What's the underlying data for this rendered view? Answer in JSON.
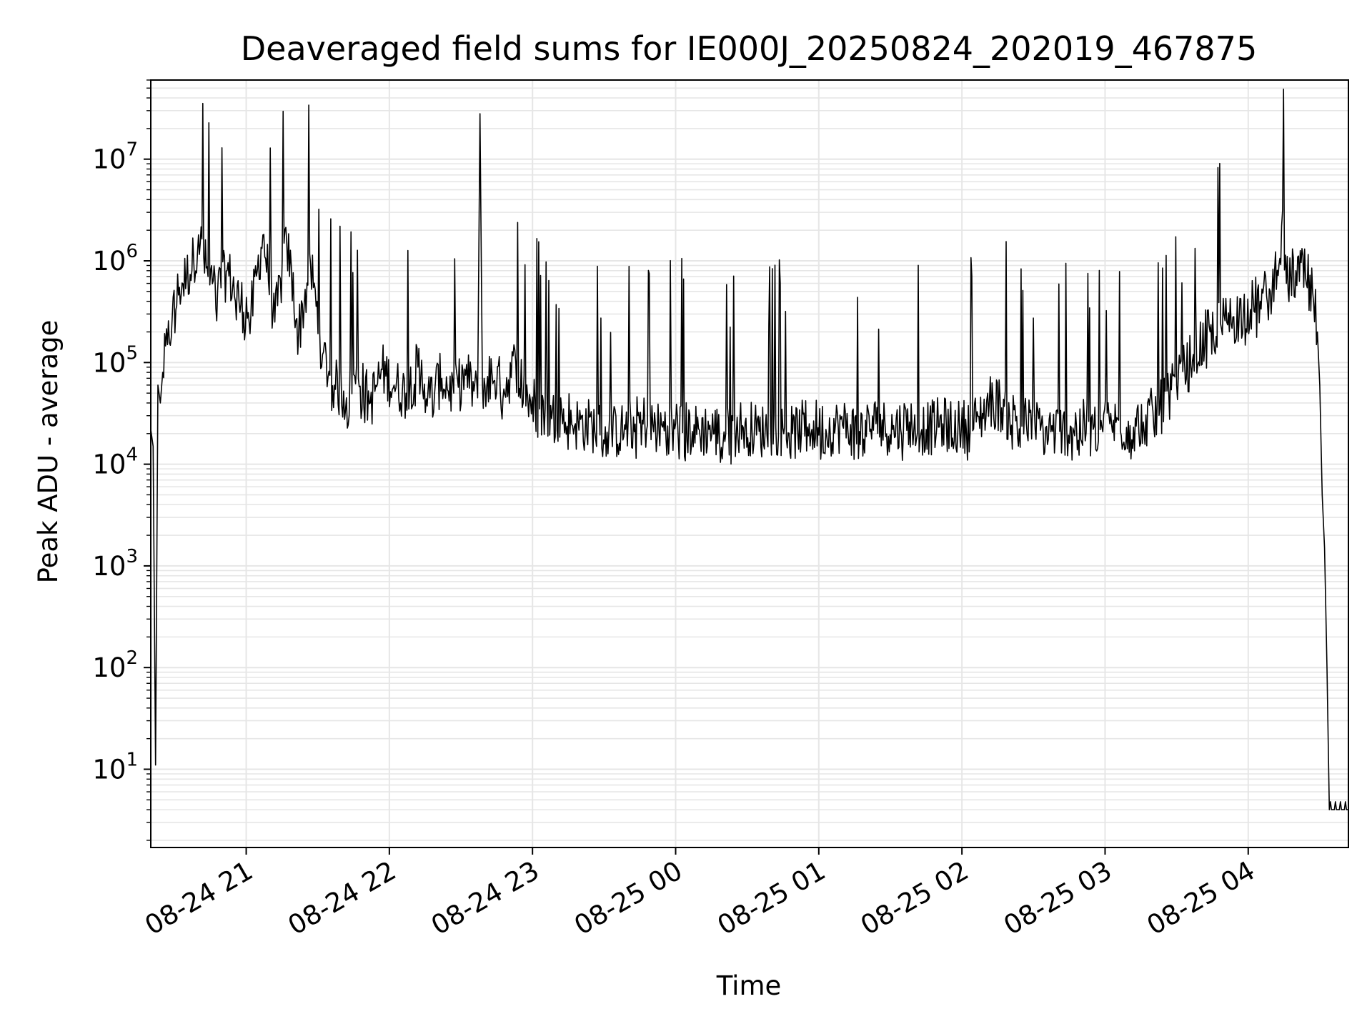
{
  "chart_data": {
    "type": "line",
    "title": "Deaveraged field sums for IE000J_20250824_202019_467875",
    "xlabel": "Time",
    "ylabel": "Peak ADU - average",
    "y_scale": "log",
    "x_range": [
      "2025-08-24T20:20",
      "2025-08-25T04:42"
    ],
    "ylim": [
      1.7,
      60000000
    ],
    "grid": true,
    "x_tick_rotation_deg": 30,
    "x_ticks": [
      {
        "time": "2025-08-24T21:00",
        "label": "08-24 21"
      },
      {
        "time": "2025-08-24T22:00",
        "label": "08-24 22"
      },
      {
        "time": "2025-08-24T23:00",
        "label": "08-24 23"
      },
      {
        "time": "2025-08-25T00:00",
        "label": "08-25 00"
      },
      {
        "time": "2025-08-25T01:00",
        "label": "08-25 01"
      },
      {
        "time": "2025-08-25T02:00",
        "label": "08-25 02"
      },
      {
        "time": "2025-08-25T03:00",
        "label": "08-25 03"
      },
      {
        "time": "2025-08-25T04:00",
        "label": "08-25 04"
      }
    ],
    "y_ticks": [
      {
        "value": 10,
        "base": "10",
        "exp": "1"
      },
      {
        "value": 100,
        "base": "10",
        "exp": "2"
      },
      {
        "value": 1000,
        "base": "10",
        "exp": "3"
      },
      {
        "value": 10000,
        "base": "10",
        "exp": "4"
      },
      {
        "value": 100000,
        "base": "10",
        "exp": "5"
      },
      {
        "value": 1000000,
        "base": "10",
        "exp": "6"
      },
      {
        "value": 10000000,
        "base": "10",
        "exp": "7"
      }
    ],
    "series": [
      {
        "color": "#000000",
        "points": [
          [
            "2025-08-24T20:20",
            1.8
          ],
          [
            "2025-08-24T20:20",
            22000
          ],
          [
            "2025-08-24T20:21",
            15000
          ],
          [
            "2025-08-24T20:22",
            11
          ],
          [
            "2025-08-24T20:23",
            60000
          ],
          [
            "2025-08-24T20:24",
            40000
          ],
          [
            "2025-08-24T20:25",
            80000
          ],
          [
            "2025-08-24T20:27",
            150000
          ],
          [
            "2025-08-24T20:29",
            280000
          ],
          [
            "2025-08-24T20:32",
            550000
          ],
          [
            "2025-08-24T20:35",
            700000
          ],
          [
            "2025-08-24T20:38",
            1000000
          ],
          [
            "2025-08-24T20:40",
            1800000
          ],
          [
            "2025-08-24T20:44",
            700000
          ],
          [
            "2025-08-24T20:48",
            500000
          ],
          [
            "2025-08-24T20:52",
            800000
          ],
          [
            "2025-08-24T20:57",
            400000
          ],
          [
            "2025-08-24T21:02",
            300000
          ],
          [
            "2025-08-24T21:07",
            1800000
          ],
          [
            "2025-08-24T21:12",
            250000
          ],
          [
            "2025-08-24T21:17",
            1500000
          ],
          [
            "2025-08-24T21:22",
            200000
          ],
          [
            "2025-08-24T21:27",
            900000
          ],
          [
            "2025-08-24T21:32",
            120000
          ],
          [
            "2025-08-24T21:37",
            60000
          ],
          [
            "2025-08-24T21:42",
            45000
          ],
          [
            "2025-08-24T21:47",
            70000
          ],
          [
            "2025-08-24T21:52",
            40000
          ],
          [
            "2025-08-24T21:57",
            85000
          ],
          [
            "2025-08-24T22:02",
            60000
          ],
          [
            "2025-08-24T22:07",
            50000
          ],
          [
            "2025-08-24T22:12",
            90000
          ],
          [
            "2025-08-24T22:17",
            45000
          ],
          [
            "2025-08-24T22:22",
            70000
          ],
          [
            "2025-08-24T22:27",
            50000
          ],
          [
            "2025-08-24T22:32",
            75000
          ],
          [
            "2025-08-24T22:37",
            45000
          ],
          [
            "2025-08-24T22:38",
            28000000
          ],
          [
            "2025-08-24T22:39",
            60000
          ],
          [
            "2025-08-24T22:43",
            80000
          ],
          [
            "2025-08-24T22:48",
            55000
          ],
          [
            "2025-08-24T22:53",
            100000
          ],
          [
            "2025-08-24T22:58",
            45000
          ],
          [
            "2025-08-24T23:03",
            35000
          ],
          [
            "2025-08-24T23:08",
            28000
          ],
          [
            "2025-08-24T23:13",
            35000
          ],
          [
            "2025-08-24T23:18",
            25000
          ],
          [
            "2025-08-24T23:25",
            24000
          ],
          [
            "2025-08-24T23:32",
            20000
          ],
          [
            "2025-08-24T23:39",
            22000
          ],
          [
            "2025-08-24T23:46",
            27000
          ],
          [
            "2025-08-24T23:53",
            22000
          ],
          [
            "2025-08-25T00:00",
            25000
          ],
          [
            "2025-08-25T00:07",
            21000
          ],
          [
            "2025-08-25T00:14",
            22000
          ],
          [
            "2025-08-25T00:21",
            20000
          ],
          [
            "2025-08-25T00:28",
            24000
          ],
          [
            "2025-08-25T00:35",
            21000
          ],
          [
            "2025-08-25T00:42",
            23000
          ],
          [
            "2025-08-25T00:49",
            20000
          ],
          [
            "2025-08-25T00:56",
            25000
          ],
          [
            "2025-08-25T01:03",
            22000
          ],
          [
            "2025-08-25T01:10",
            24000
          ],
          [
            "2025-08-25T01:17",
            21000
          ],
          [
            "2025-08-25T01:24",
            25000
          ],
          [
            "2025-08-25T01:31",
            22000
          ],
          [
            "2025-08-25T01:38",
            26000
          ],
          [
            "2025-08-25T01:45",
            22000
          ],
          [
            "2025-08-25T01:52",
            25000
          ],
          [
            "2025-08-25T01:59",
            23000
          ],
          [
            "2025-08-25T02:06",
            26000
          ],
          [
            "2025-08-25T02:13",
            45000
          ],
          [
            "2025-08-25T02:20",
            30000
          ],
          [
            "2025-08-25T02:27",
            25000
          ],
          [
            "2025-08-25T02:34",
            22000
          ],
          [
            "2025-08-25T02:41",
            21000
          ],
          [
            "2025-08-25T02:48",
            24000
          ],
          [
            "2025-08-25T02:55",
            22000
          ],
          [
            "2025-08-25T03:02",
            25000
          ],
          [
            "2025-08-25T03:09",
            23000
          ],
          [
            "2025-08-25T03:16",
            26000
          ],
          [
            "2025-08-25T03:23",
            35000
          ],
          [
            "2025-08-25T03:30",
            60000
          ],
          [
            "2025-08-25T03:37",
            120000
          ],
          [
            "2025-08-25T03:44",
            200000
          ],
          [
            "2025-08-25T03:51",
            250000
          ],
          [
            "2025-08-25T03:58",
            320000
          ],
          [
            "2025-08-25T04:05",
            400000
          ],
          [
            "2025-08-25T04:10",
            500000
          ],
          [
            "2025-08-25T04:14",
            2200000
          ],
          [
            "2025-08-25T04:16",
            600000
          ],
          [
            "2025-08-25T04:20",
            800000
          ],
          [
            "2025-08-25T04:24",
            700000
          ],
          [
            "2025-08-25T04:27",
            500000
          ],
          [
            "2025-08-25T04:29",
            200000
          ],
          [
            "2025-08-25T04:30",
            60000
          ],
          [
            "2025-08-25T04:31",
            5000
          ],
          [
            "2025-08-25T04:32",
            1500
          ],
          [
            "2025-08-25T04:33",
            100
          ],
          [
            "2025-08-25T04:34",
            4
          ],
          [
            "2025-08-25T04:42",
            4
          ]
        ]
      }
    ]
  }
}
